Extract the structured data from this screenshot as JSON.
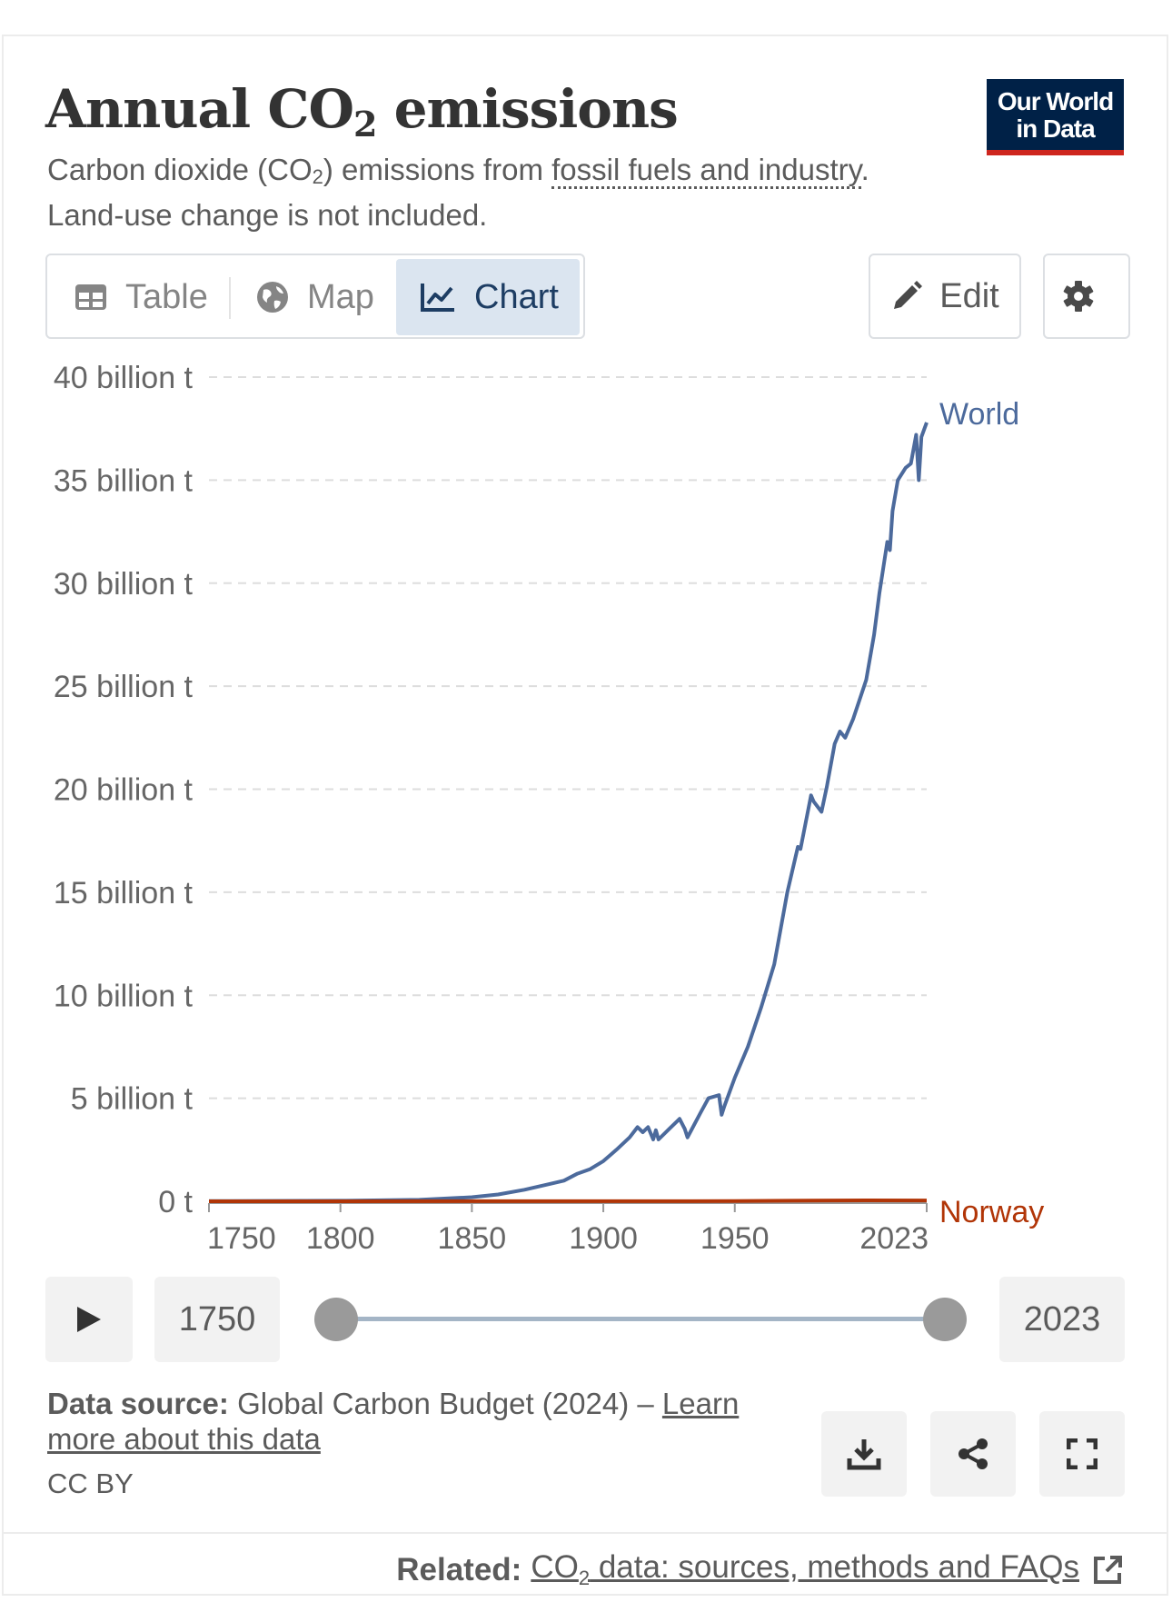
{
  "header": {
    "title_main": "Annual CO",
    "title_sub": "2",
    "title_end": " emissions",
    "subtitle_a": "Carbon dioxide (CO",
    "subtitle_sub": "2",
    "subtitle_b": ") emissions from ",
    "subtitle_link": "fossil fuels and industry",
    "subtitle_c": ".",
    "subtitle_line2": "Land-use change is not included.",
    "logo_line1": "Our World",
    "logo_line2": "in Data"
  },
  "tabs": [
    {
      "label": "Table",
      "icon": "table-icon",
      "active": false
    },
    {
      "label": "Map",
      "icon": "globe-icon",
      "active": false
    },
    {
      "label": "Chart",
      "icon": "line-chart-icon",
      "active": true
    }
  ],
  "toolbar": {
    "edit_label": "Edit",
    "settings_icon": "gear-icon"
  },
  "chart_data": {
    "type": "line",
    "title": "Annual CO₂ emissions",
    "ylim": [
      0,
      40000000000
    ],
    "y_ticks": [
      {
        "value": 0,
        "label": "0 t"
      },
      {
        "value": 5000000000,
        "label": "5 billion t"
      },
      {
        "value": 10000000000,
        "label": "10 billion t"
      },
      {
        "value": 15000000000,
        "label": "15 billion t"
      },
      {
        "value": 20000000000,
        "label": "20 billion t"
      },
      {
        "value": 25000000000,
        "label": "25 billion t"
      },
      {
        "value": 30000000000,
        "label": "30 billion t"
      },
      {
        "value": 35000000000,
        "label": "35 billion t"
      },
      {
        "value": 40000000000,
        "label": "40 billion t"
      }
    ],
    "xlim": [
      1750,
      2023
    ],
    "x_ticks": [
      {
        "value": 1750,
        "label": "1750"
      },
      {
        "value": 1800,
        "label": "1800"
      },
      {
        "value": 1850,
        "label": "1850"
      },
      {
        "value": 1900,
        "label": "1900"
      },
      {
        "value": 1950,
        "label": "1950"
      },
      {
        "value": 2023,
        "label": "2023"
      }
    ],
    "grid": true,
    "series": [
      {
        "name": "World",
        "color": "#4c6a9c",
        "x": [
          1750,
          1800,
          1830,
          1850,
          1860,
          1870,
          1880,
          1885,
          1890,
          1895,
          1900,
          1905,
          1910,
          1913,
          1915,
          1917,
          1919,
          1920,
          1921,
          1925,
          1929,
          1931,
          1932,
          1937,
          1940,
          1944,
          1945,
          1946,
          1950,
          1955,
          1960,
          1965,
          1970,
          1974,
          1975,
          1979,
          1980,
          1983,
          1985,
          1988,
          1990,
          1992,
          1995,
          2000,
          2003,
          2005,
          2008,
          2009,
          2010,
          2012,
          2015,
          2017,
          2019,
          2020,
          2021,
          2023
        ],
        "y": [
          9000000,
          28000000,
          70000000,
          200000000,
          330000000,
          560000000,
          850000000,
          1000000000,
          1330000000,
          1560000000,
          1950000000,
          2500000000,
          3100000000,
          3600000000,
          3350000000,
          3600000000,
          3000000000,
          3450000000,
          3000000000,
          3500000000,
          4000000000,
          3500000000,
          3100000000,
          4300000000,
          5000000000,
          5150000000,
          4200000000,
          4600000000,
          6000000000,
          7500000000,
          9400000000,
          11500000000,
          15000000000,
          17200000000,
          17100000000,
          19700000000,
          19400000000,
          18900000000,
          20100000000,
          22200000000,
          22800000000,
          22500000000,
          23400000000,
          25300000000,
          27500000000,
          29500000000,
          32000000000,
          31600000000,
          33500000000,
          35000000000,
          35600000000,
          35800000000,
          37200000000,
          35000000000,
          37100000000,
          37800000000
        ]
      },
      {
        "name": "Norway",
        "color": "#b13507",
        "x": [
          1750,
          1900,
          1950,
          1970,
          2000,
          2023
        ],
        "y": [
          0,
          3000000,
          10000000,
          25000000,
          42000000,
          40000000
        ]
      }
    ]
  },
  "timeline": {
    "play_icon": "play-icon",
    "start_label": "1750",
    "end_label": "2023",
    "start_value": 1750,
    "end_value": 2023
  },
  "footer": {
    "source_label": "Data source:",
    "source_text": " Global Carbon Budget (2024) – ",
    "source_link": "Learn more about this data",
    "license": "CC BY",
    "download_icon": "download-icon",
    "share_icon": "share-icon",
    "fullscreen_icon": "fullscreen-icon",
    "related_label": "Related:",
    "related_link_a": "CO",
    "related_link_sub": "2",
    "related_link_b": " data: sources, methods and FAQs",
    "external_icon": "external-link-icon"
  }
}
